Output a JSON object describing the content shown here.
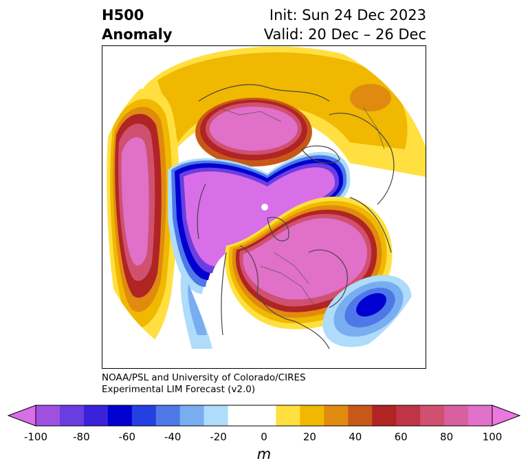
{
  "title": {
    "variable": "H500",
    "field": "Anomaly",
    "init": "Init: Sun 24 Dec 2023",
    "valid": "Valid: 20 Dec – 26 Dec"
  },
  "credit": {
    "line1": "NOAA/PSL and University of Colorado/CIRES",
    "line2": "Experimental LIM Forecast (v2.0)"
  },
  "colorbar": {
    "ticks": [
      "-100",
      "-80",
      "-60",
      "-40",
      "-20",
      "0",
      "20",
      "40",
      "60",
      "80",
      "100"
    ],
    "unit": "m",
    "colors": [
      "#d86ee8",
      "#a050e0",
      "#6a3ee0",
      "#3a22d8",
      "#0000d0",
      "#2440e0",
      "#4e78e8",
      "#78aef0",
      "#aedcfa",
      "#ffffff",
      "#ffffff",
      "#ffe040",
      "#f0b800",
      "#e08a10",
      "#c85818",
      "#b02424",
      "#c03448",
      "#d05070",
      "#d860a0",
      "#e070c8",
      "#ea78e0"
    ]
  },
  "map": {
    "projection": "north-polar-stereographic",
    "features": [
      "negative anomaly over Arctic",
      "ridge over North Pacific",
      "ridge over Europe",
      "ridge over eastern North America",
      "trough over central Atlantic"
    ]
  }
}
